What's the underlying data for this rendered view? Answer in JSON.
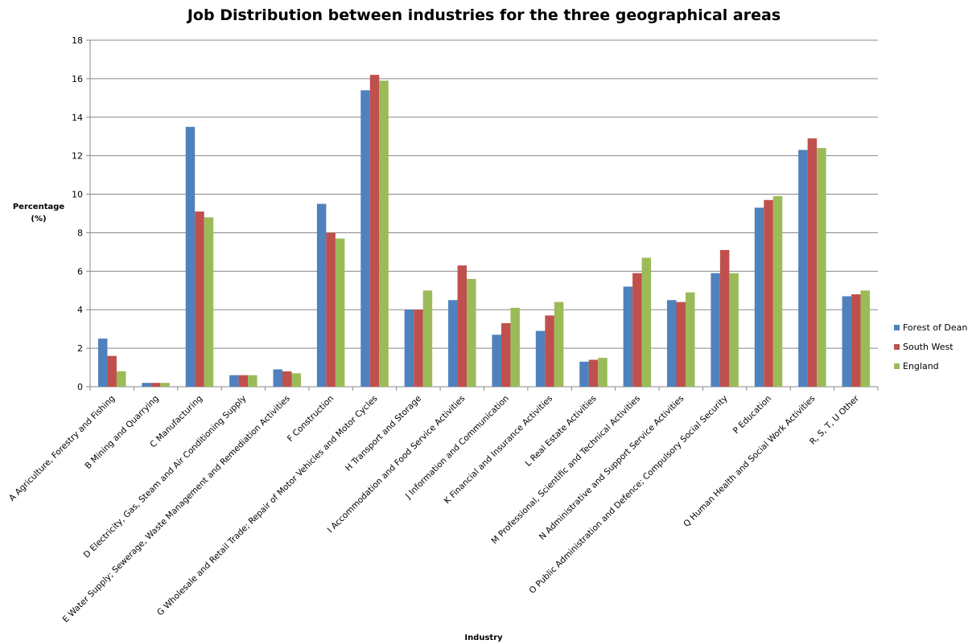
{
  "chart_data": {
    "type": "bar",
    "title": "Job Distribution between industries for the three geographical areas",
    "xlabel": "Industry",
    "ylabel": "Percentage (%)",
    "ylim": [
      0,
      18
    ],
    "yticks": [
      "0",
      "2",
      "4",
      "6",
      "8",
      "10",
      "12",
      "14",
      "16",
      "18"
    ],
    "grid": true,
    "legend_position": "right",
    "categories": [
      "A Agriculture, Forestry and Fishing",
      "B Mining and Quarrying",
      "C Manufacturing",
      "D Electricity, Gas, Steam and Air Conditioning Supply",
      "E Water Supply; Sewerage, Waste Management and Remediation Activities",
      "F Construction",
      "G Wholesale and Retail Trade; Repair of Motor Vehicles and Motor Cycles",
      "H Transport and Storage",
      "I Accommodation and Food Service Activities",
      "J Information and Communication",
      "K Financial and Insurance Activities",
      "L Real Estate Activities",
      "M Professional, Scientific and Technical Activities",
      "N Administrative and Support Service Activities",
      "O Public Administration and Defence; Compulsory Social Security",
      "P Education",
      "Q Human Health and Social Work Activities",
      "R, S, T, U Other"
    ],
    "series": [
      {
        "name": "Forest of Dean",
        "color": "#4f81bd",
        "values": [
          2.5,
          0.2,
          13.5,
          0.6,
          0.9,
          9.5,
          15.4,
          4.0,
          4.5,
          2.7,
          2.9,
          1.3,
          5.2,
          4.5,
          5.9,
          9.3,
          12.3,
          4.7
        ]
      },
      {
        "name": "South West",
        "color": "#c0504d",
        "values": [
          1.6,
          0.2,
          9.1,
          0.6,
          0.8,
          8.0,
          16.2,
          4.0,
          6.3,
          3.3,
          3.7,
          1.4,
          5.9,
          4.4,
          7.1,
          9.7,
          12.9,
          4.8
        ]
      },
      {
        "name": "England",
        "color": "#9bbb59",
        "values": [
          0.8,
          0.2,
          8.8,
          0.6,
          0.7,
          7.7,
          15.9,
          5.0,
          5.6,
          4.1,
          4.4,
          1.5,
          6.7,
          4.9,
          5.9,
          9.9,
          12.4,
          5.0
        ]
      }
    ]
  }
}
